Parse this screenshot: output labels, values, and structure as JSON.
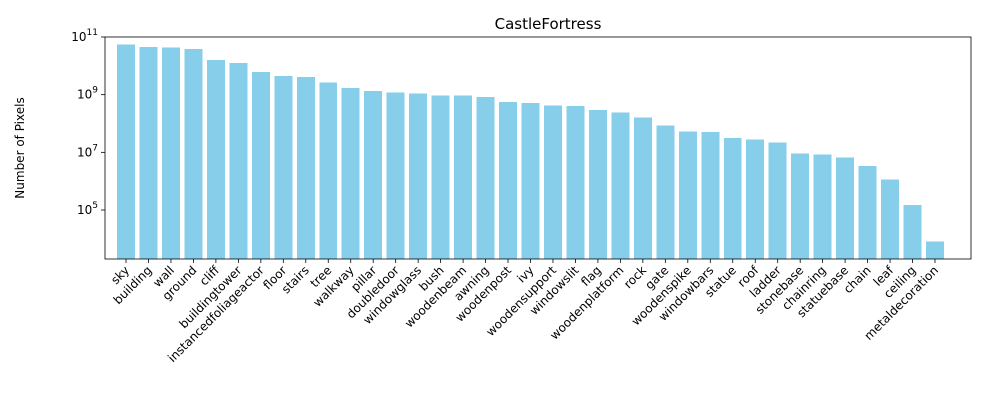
{
  "chart_data": {
    "type": "bar",
    "title": "CastleFortress",
    "xlabel": "",
    "ylabel": "Number of Pixels",
    "yscale": "log",
    "ylim": [
      2000,
      100000000000
    ],
    "yticks": [
      {
        "value": 100000,
        "base": "10",
        "exp": "5"
      },
      {
        "value": 10000000,
        "base": "10",
        "exp": "7"
      },
      {
        "value": 1000000000,
        "base": "10",
        "exp": "9"
      },
      {
        "value": 100000000000,
        "base": "10",
        "exp": "11"
      }
    ],
    "bar_color": "#87ceeb",
    "grid": false,
    "categories": [
      "sky",
      "building",
      "wall",
      "ground",
      "cliff",
      "buildingtower",
      "instancedfoliageactor",
      "floor",
      "stairs",
      "tree",
      "walkway",
      "pillar",
      "doubledoor",
      "windowglass",
      "bush",
      "woodenbeam",
      "awning",
      "woodenpost",
      "ivy",
      "woodensupport",
      "windowslit",
      "flag",
      "woodenplatform",
      "rock",
      "gate",
      "woodenspike",
      "windowbars",
      "statue",
      "roof",
      "ladder",
      "stonebase",
      "chainring",
      "statuebase",
      "chain",
      "leaf",
      "ceiling",
      "metaldecoration"
    ],
    "values": [
      55000000000,
      45000000000,
      44000000000,
      38000000000,
      16000000000,
      12500000000,
      6000000000,
      4500000000,
      4100000000,
      2600000000,
      1700000000,
      1350000000,
      1200000000,
      1100000000,
      950000000,
      920000000,
      820000000,
      560000000,
      520000000,
      420000000,
      410000000,
      300000000,
      240000000,
      160000000,
      85000000,
      52000000,
      50000000,
      32000000,
      28000000,
      22000000,
      9000000,
      8500000,
      6500000,
      3300000,
      1150000,
      150000,
      8000
    ]
  }
}
